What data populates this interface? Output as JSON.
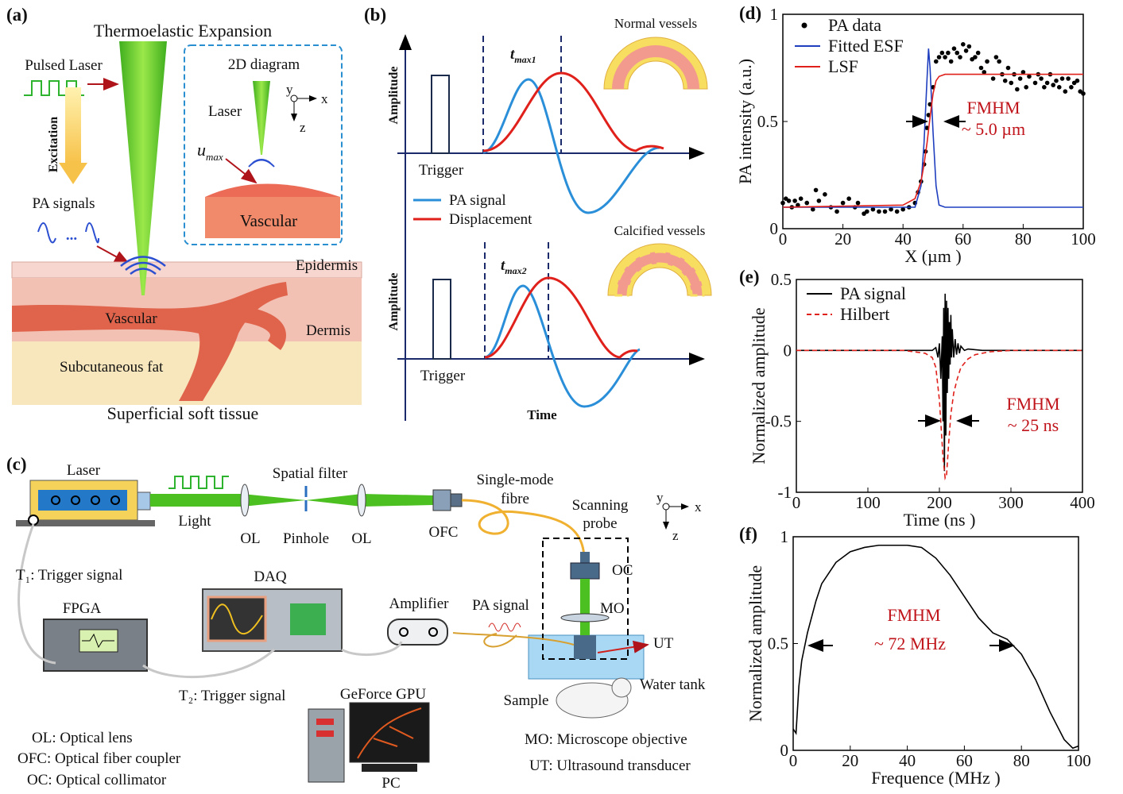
{
  "panel_a": {
    "label": "(a)",
    "title": "Thermoelastic Expansion",
    "pulsed_laser": "Pulsed Laser",
    "excitation": "Excitation",
    "pa_signals": "PA signals",
    "ellipsis": "...",
    "inset": {
      "title": "2D diagram",
      "laser": "Laser",
      "y": "y",
      "x": "x",
      "z": "z",
      "u": "u",
      "u_sub": "max",
      "vascular": "Vascular"
    },
    "epidermis": "Epidermis",
    "vascular": "Vascular",
    "dermis": "Dermis",
    "fat": "Subcutaneous fat",
    "caption": "Superficial soft tissue"
  },
  "panel_b": {
    "label": "(b)",
    "top": {
      "amplitude": "Amplitude",
      "trigger": "Trigger",
      "t": "t",
      "t_sub": "max1",
      "vessel": "Normal vessels"
    },
    "bottom": {
      "amplitude": "Amplitude",
      "trigger": "Trigger",
      "t": "t",
      "t_sub": "max2",
      "vessel": "Calcified vessels"
    },
    "legend": [
      "PA signal",
      "Displacement"
    ],
    "x_label": "Time"
  },
  "panel_c": {
    "label": "(c)",
    "laser": "Laser",
    "spatial_filter": "Spatial filter",
    "light": "Light",
    "ol1": "OL",
    "pinhole": "Pinhole",
    "ol2": "OL",
    "ofc": "OFC",
    "fibre": [
      "Single-mode",
      "fibre"
    ],
    "scanning_probe": [
      "Scanning",
      "probe"
    ],
    "y": "y",
    "x": "x",
    "z": "z",
    "oc": "OC",
    "mo": "MO",
    "ut": "UT",
    "water_tank": "Water tank",
    "sample": "Sample",
    "pa_signal": "PA signal",
    "amplifier": "Amplifier",
    "daq": "DAQ",
    "fpga": "FPGA",
    "t1": "T₁: Trigger signal",
    "t2": "T₂: Trigger signal",
    "gpu": "GeForce GPU",
    "pc": "PC",
    "abbreviations": [
      "OL: Optical lens",
      "OFC: Optical fiber coupler",
      "OC: Optical collimator"
    ],
    "notes": [
      "MO: Microscope objective",
      "UT: Ultrasound transducer"
    ]
  },
  "chart_data": [
    {
      "type": "line",
      "label": "(d)",
      "x_label": "X (µm )",
      "y_label": "PA intensity (a.u.)",
      "xlim": [
        0,
        100
      ],
      "ylim": [
        0,
        1
      ],
      "xticks": [
        0,
        20,
        40,
        60,
        80,
        100
      ],
      "yticks": [
        0,
        0.5,
        1
      ],
      "series": [
        {
          "name": "PA data",
          "color": "#000000",
          "mode": "markers",
          "x": [
            0,
            1,
            2,
            3,
            4,
            5,
            6,
            8,
            10,
            11,
            12,
            14,
            16,
            18,
            20,
            22,
            24,
            25,
            27,
            28,
            30,
            32,
            34,
            36,
            38,
            40,
            42,
            44,
            45,
            46,
            47,
            47.5,
            48,
            48.5,
            49,
            50,
            51,
            52,
            53,
            54,
            55,
            56,
            57,
            58,
            59,
            60,
            61,
            62,
            63,
            64,
            65,
            66,
            67,
            68,
            70,
            71,
            72,
            73,
            74,
            75,
            76,
            77,
            78,
            79,
            80,
            81,
            82,
            84,
            85,
            86,
            87,
            88,
            89,
            90,
            91,
            92,
            93,
            94,
            95,
            96,
            97,
            98,
            99,
            100
          ],
          "values": [
            0.12,
            0.14,
            0.13,
            0.1,
            0.13,
            0.11,
            0.14,
            0.12,
            0.09,
            0.18,
            0.13,
            0.16,
            0.1,
            0.08,
            0.12,
            0.14,
            0.1,
            0.12,
            0.07,
            0.08,
            0.09,
            0.08,
            0.08,
            0.09,
            0.08,
            0.09,
            0.1,
            0.12,
            0.17,
            0.22,
            0.3,
            0.36,
            0.47,
            0.53,
            0.58,
            0.66,
            0.78,
            0.8,
            0.82,
            0.8,
            0.82,
            0.78,
            0.84,
            0.82,
            0.8,
            0.86,
            0.83,
            0.85,
            0.79,
            0.8,
            0.82,
            0.75,
            0.73,
            0.78,
            0.7,
            0.8,
            0.78,
            0.72,
            0.69,
            0.75,
            0.68,
            0.72,
            0.65,
            0.7,
            0.73,
            0.66,
            0.71,
            0.68,
            0.72,
            0.7,
            0.66,
            0.68,
            0.72,
            0.67,
            0.69,
            0.66,
            0.7,
            0.64,
            0.7,
            0.66,
            0.68,
            0.69,
            0.64,
            0.63
          ]
        },
        {
          "name": "Fitted ESF",
          "color": "#1f3fbf",
          "x": [
            0,
            44,
            46,
            47,
            48,
            48.5,
            49,
            50,
            51,
            52,
            54,
            100
          ],
          "values": [
            0.1,
            0.1,
            0.2,
            0.4,
            0.7,
            0.84,
            0.75,
            0.45,
            0.2,
            0.11,
            0.1,
            0.1
          ]
        },
        {
          "name": "LSF",
          "color": "#e0201b",
          "x": [
            0,
            40,
            44,
            46,
            47,
            48,
            49,
            50,
            51,
            52,
            54,
            100
          ],
          "values": [
            0.1,
            0.11,
            0.14,
            0.22,
            0.3,
            0.4,
            0.52,
            0.63,
            0.69,
            0.71,
            0.72,
            0.72
          ]
        }
      ],
      "annotations": [
        "FMHM",
        "~ 5.0 µm"
      ],
      "annotation_color": "#c0141b"
    },
    {
      "type": "line",
      "label": "(e)",
      "x_label": "Time (ns )",
      "y_label": "Normalized amplitude",
      "xlim": [
        0,
        400
      ],
      "ylim": [
        -1,
        0.5
      ],
      "xticks": [
        0,
        100,
        200,
        300,
        400
      ],
      "yticks": [
        -1,
        -0.5,
        0,
        0.5
      ],
      "series": [
        {
          "name": "PA signal",
          "color": "#000000",
          "x": [
            0,
            100,
            180,
            190,
            195,
            198,
            200,
            202,
            204,
            205,
            206,
            207,
            208,
            209,
            210,
            211,
            212,
            213,
            214,
            215,
            216,
            217,
            218,
            220,
            222,
            224,
            226,
            228,
            230,
            235,
            240,
            260,
            400
          ],
          "values": [
            0,
            0,
            0,
            0,
            0.02,
            -0.05,
            0.05,
            -0.2,
            0.1,
            -0.5,
            0.3,
            -0.85,
            0.4,
            -0.6,
            0.35,
            -0.3,
            0.3,
            -0.2,
            0.2,
            -0.1,
            0.25,
            -0.05,
            0.15,
            -0.05,
            0.08,
            -0.03,
            0.05,
            -0.02,
            0.03,
            0,
            0.01,
            0,
            0
          ]
        },
        {
          "name": "Hilbert",
          "color": "#e0201b",
          "dash": true,
          "x": [
            0,
            150,
            180,
            190,
            195,
            200,
            205,
            208,
            210,
            213,
            216,
            220,
            225,
            230,
            240,
            250,
            270,
            300,
            400
          ],
          "values": [
            0,
            0,
            -0.02,
            -0.05,
            -0.12,
            -0.35,
            -0.75,
            -0.9,
            -0.88,
            -0.65,
            -0.45,
            -0.3,
            -0.2,
            -0.12,
            -0.06,
            -0.03,
            -0.01,
            0,
            0
          ]
        }
      ],
      "annotations": [
        "FMHM",
        "~ 25 ns"
      ],
      "annotation_color": "#c0141b"
    },
    {
      "type": "line",
      "label": "(f)",
      "x_label": "Frequence (MHz )",
      "y_label": "Normalized amplitude",
      "xlim": [
        0,
        100
      ],
      "ylim": [
        0,
        1
      ],
      "xticks": [
        0,
        20,
        40,
        60,
        80,
        100
      ],
      "yticks": [
        0,
        0.5,
        1
      ],
      "series": [
        {
          "color": "#000000",
          "x": [
            0,
            1,
            2,
            3,
            5,
            8,
            10,
            15,
            20,
            25,
            30,
            40,
            45,
            50,
            55,
            60,
            65,
            70,
            75,
            80,
            85,
            90,
            95,
            98,
            100
          ],
          "values": [
            0.1,
            0.08,
            0.3,
            0.42,
            0.55,
            0.7,
            0.78,
            0.88,
            0.93,
            0.95,
            0.96,
            0.96,
            0.95,
            0.9,
            0.82,
            0.72,
            0.62,
            0.55,
            0.52,
            0.45,
            0.33,
            0.18,
            0.05,
            0.01,
            0.02
          ]
        }
      ],
      "annotations": [
        "FMHM",
        "~ 72 MHz"
      ],
      "annotation_color": "#c0141b"
    }
  ]
}
